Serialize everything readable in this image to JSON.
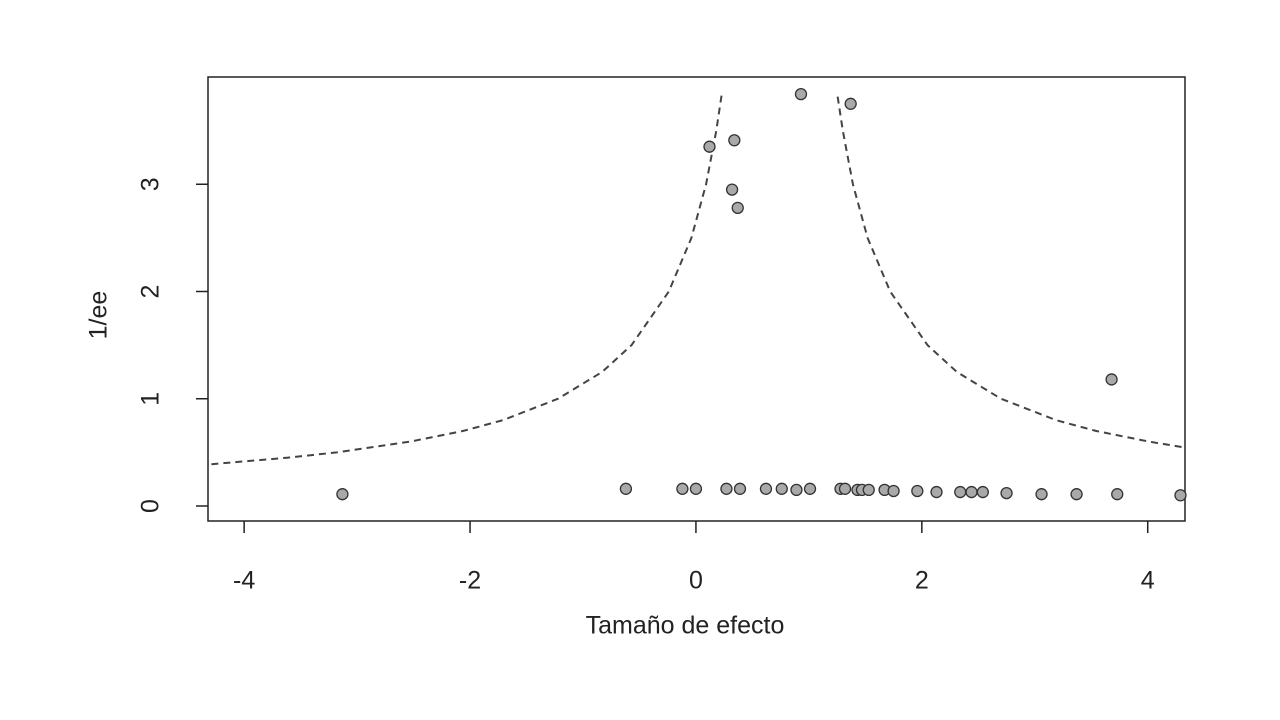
{
  "chart_data": {
    "type": "scatter",
    "x_label": "Tamaño de efecto",
    "y_label": "1/ee",
    "xlim": [
      -4.32,
      4.33
    ],
    "ylim": [
      -0.14,
      4.0
    ],
    "xticks": [
      -4,
      -2,
      0,
      2,
      4
    ],
    "yticks": [
      0,
      1,
      2,
      3
    ],
    "grid": false,
    "point_color": "#a9a9a9",
    "x": [
      -3.13,
      0.12,
      0.34,
      0.32,
      0.37,
      0.93,
      1.37,
      3.68,
      -0.62,
      -0.12,
      0,
      0.27,
      0.39,
      0.62,
      0.76,
      0.89,
      1.01,
      1.28,
      1.32,
      1.43,
      1.47,
      1.53,
      1.67,
      1.75,
      1.96,
      2.13,
      2.34,
      2.44,
      2.54,
      2.75,
      3.06,
      3.37,
      3.73,
      4.29
    ],
    "y": [
      0.11,
      3.35,
      3.41,
      2.95,
      2.78,
      3.84,
      3.75,
      1.18,
      0.16,
      0.16,
      0.16,
      0.16,
      0.16,
      0.16,
      0.16,
      0.15,
      0.16,
      0.16,
      0.16,
      0.15,
      0.15,
      0.15,
      0.15,
      0.14,
      0.14,
      0.13,
      0.13,
      0.13,
      0.13,
      0.12,
      0.11,
      0.11,
      0.11,
      0.1
    ],
    "lines": [
      {
        "style": "dashed",
        "color": "#444444",
        "x": [
          -4.29,
          -3.62,
          -3.18,
          -2.53,
          -2.06,
          -1.71,
          -1.22,
          -0.83,
          -0.57,
          -0.24,
          -0.04,
          0.09,
          0.18,
          0.23
        ],
        "y": [
          0.39,
          0.45,
          0.5,
          0.6,
          0.7,
          0.8,
          1,
          1.25,
          1.5,
          2,
          2.5,
          3,
          3.5,
          3.85
        ]
      },
      {
        "style": "dashed",
        "color": "#444444",
        "x": [
          4.3,
          4.01,
          3.54,
          3.19,
          2.7,
          2.31,
          2.05,
          1.72,
          1.52,
          1.39,
          1.3,
          1.25
        ],
        "y": [
          0.55,
          0.6,
          0.7,
          0.8,
          1,
          1.25,
          1.5,
          2,
          2.5,
          3,
          3.5,
          3.85
        ]
      }
    ]
  }
}
